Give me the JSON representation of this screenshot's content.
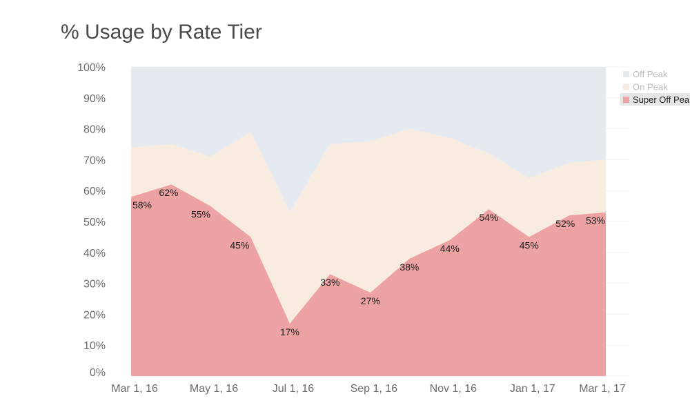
{
  "title": "% Usage by Rate Tier",
  "colors": {
    "off_peak": "#e5eaf0",
    "on_peak": "#f8ece0",
    "super_off_peak": "#eda3a3",
    "grid": "#f0f0f0"
  },
  "chart_data": {
    "type": "area",
    "stacked": true,
    "x": [
      "2016-03-01",
      "2016-04-01",
      "2016-05-01",
      "2016-06-01",
      "2016-07-01",
      "2016-08-01",
      "2016-09-01",
      "2016-10-01",
      "2016-11-01",
      "2016-12-01",
      "2017-01-01",
      "2017-02-01",
      "2017-03-01"
    ],
    "x_tick_labels": [
      "Mar 1, 16",
      "May 1, 16",
      "Jul 1, 16",
      "Sep 1, 16",
      "Nov 1, 16",
      "Jan 1, 17",
      "Mar 1, 17"
    ],
    "x_tick_dates": [
      "2016-03-01",
      "2016-05-01",
      "2016-07-01",
      "2016-09-01",
      "2016-11-01",
      "2017-01-01",
      "2017-03-01"
    ],
    "y_tick_labels": [
      "0%",
      "10%",
      "20%",
      "30%",
      "40%",
      "50%",
      "60%",
      "70%",
      "80%",
      "90%",
      "100%"
    ],
    "ylim": [
      0,
      100
    ],
    "series": [
      {
        "name": "Super Off Peak",
        "values": [
          58,
          62,
          55,
          45,
          17,
          33,
          27,
          38,
          44,
          54,
          45,
          52,
          53
        ],
        "labels": [
          "58%",
          "62%",
          "55%",
          "45%",
          "17%",
          "33%",
          "27%",
          "38%",
          "44%",
          "54%",
          "45%",
          "52%",
          "53%"
        ]
      },
      {
        "name": "On Peak",
        "values": [
          16,
          13,
          16,
          34,
          36,
          42,
          49,
          42,
          33,
          18,
          19,
          17,
          17
        ]
      },
      {
        "name": "Off Peak",
        "values": [
          26,
          25,
          29,
          21,
          47,
          25,
          24,
          20,
          23,
          28,
          36,
          31,
          30
        ]
      }
    ],
    "legend": {
      "position": "top-right",
      "items": [
        {
          "label": "Off Peak",
          "color": "#e5eaf0"
        },
        {
          "label": "On Peak",
          "color": "#f8ece0"
        },
        {
          "label": "Super Off Peak",
          "color": "#eda3a3",
          "highlighted": true
        }
      ]
    },
    "grid": true
  }
}
